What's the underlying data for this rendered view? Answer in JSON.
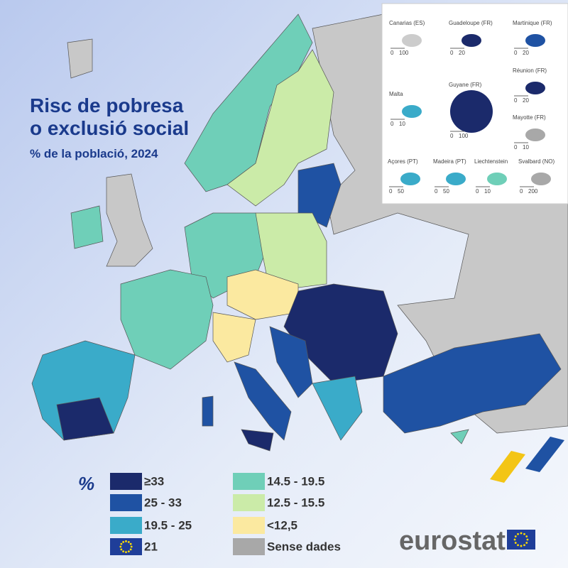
{
  "title": "Risc de pobresa o exclusió social",
  "subtitle": "% de la població, 2024",
  "legend": {
    "unit": "%",
    "items": [
      {
        "label": "≥33",
        "color": "#1b2a6b"
      },
      {
        "label": "25 - 33",
        "color": "#1f52a3"
      },
      {
        "label": "19.5 - 25",
        "color": "#3aabc9"
      },
      {
        "label": "21",
        "color": "#1f3e99",
        "flag": true
      },
      {
        "label": "14.5 - 19.5",
        "color": "#6fcfb8"
      },
      {
        "label": "12.5 - 15.5",
        "color": "#cbeba8"
      },
      {
        "label": "<12,5",
        "color": "#fbe9a0"
      },
      {
        "label": "Sense dades",
        "color": "#a8a8a8"
      }
    ]
  },
  "insets": [
    {
      "name": "Canarias (ES)",
      "scale": [
        "0",
        "100"
      ]
    },
    {
      "name": "Guadeloupe (FR)",
      "scale": [
        "0",
        "20"
      ]
    },
    {
      "name": "Martinique (FR)",
      "scale": [
        "0",
        "20"
      ]
    },
    {
      "name": "Réunion (FR)",
      "scale": [
        "0",
        "20"
      ]
    },
    {
      "name": "Malta",
      "scale": [
        "0",
        "10"
      ]
    },
    {
      "name": "Guyane (FR)",
      "scale": [
        "0",
        "100"
      ]
    },
    {
      "name": "Mayotte (FR)",
      "scale": [
        "0",
        "10"
      ]
    },
    {
      "name": "Açores (PT)",
      "scale": [
        "0",
        "50"
      ]
    },
    {
      "name": "Madeira (PT)",
      "scale": [
        "0",
        "50"
      ]
    },
    {
      "name": "Liechtenstein",
      "scale": [
        "0",
        "10"
      ]
    },
    {
      "name": "Svalbard (NO)",
      "scale": [
        "0",
        "200"
      ]
    }
  ],
  "logo": "eurostat"
}
